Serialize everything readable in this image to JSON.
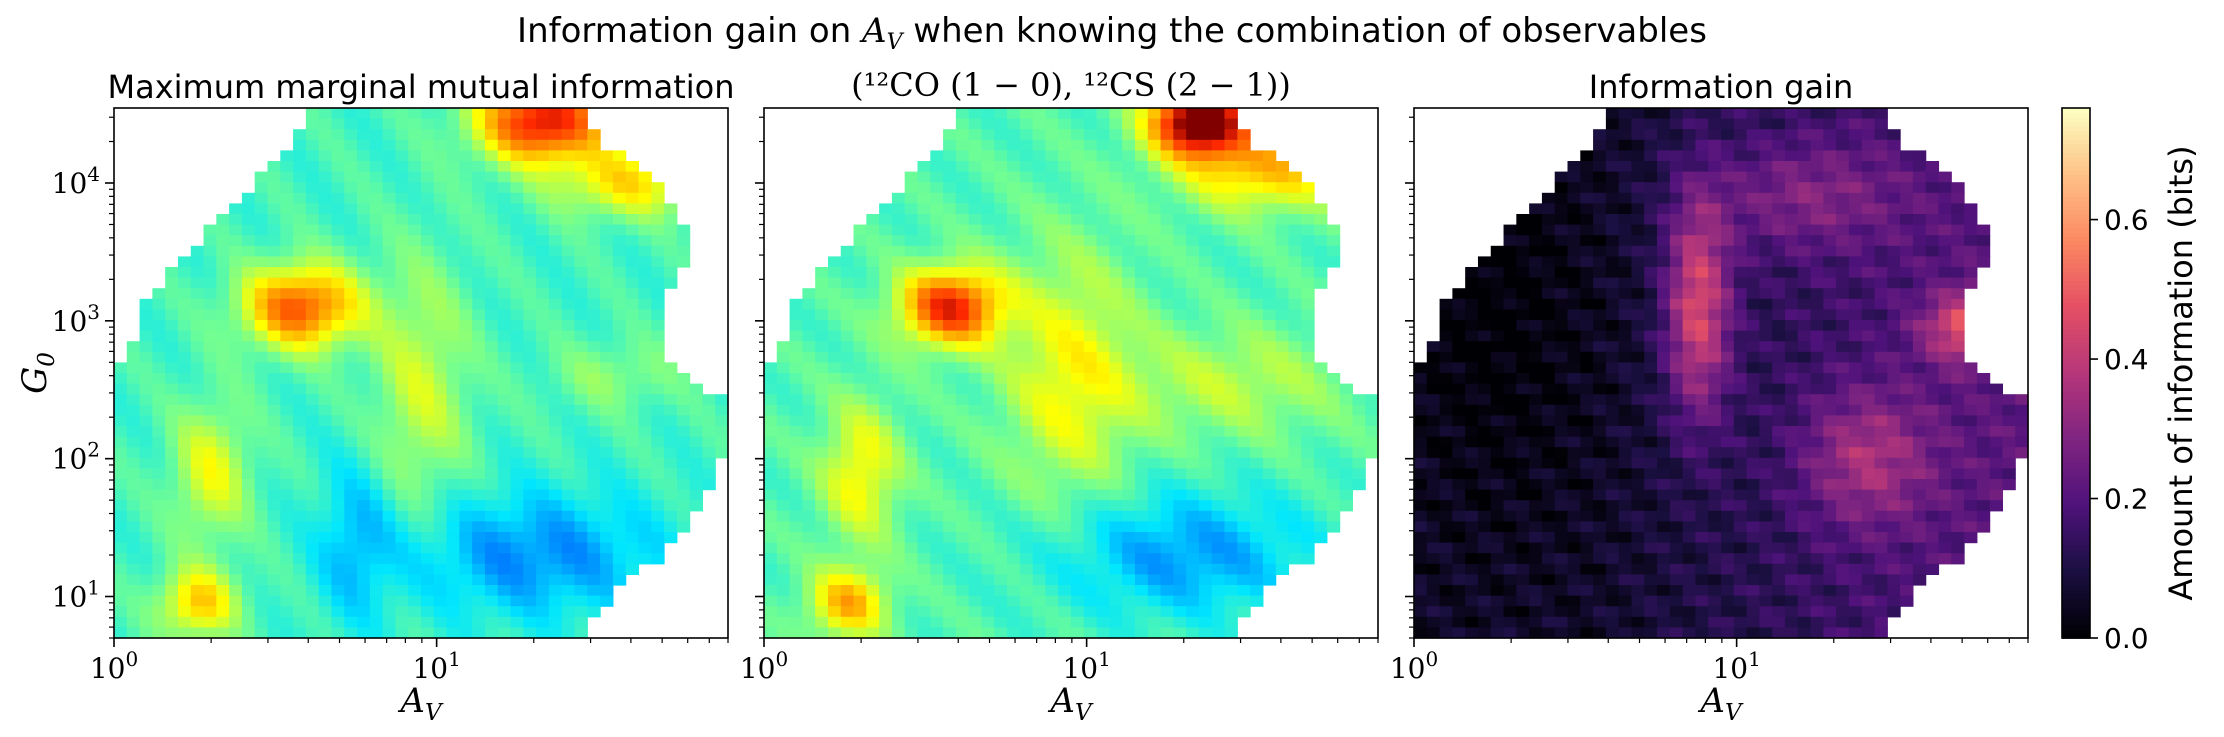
{
  "figure": {
    "suptitle_prefix": "Information gain on ",
    "suptitle_var": "A",
    "suptitle_sub": "V",
    "suptitle_suffix": " when knowing the combination of observables"
  },
  "chart_data": [
    {
      "type": "heatmap",
      "title": "Maximum marginal mutual information",
      "xlabel": "A_V",
      "ylabel": "G_0",
      "x_scale": "log",
      "y_scale": "log",
      "xlim": [
        1,
        80
      ],
      "ylim": [
        5,
        35000
      ],
      "x_ticks": [
        {
          "value": 1,
          "label": "10^0"
        },
        {
          "value": 10,
          "label": "10^1"
        }
      ],
      "y_ticks": [
        {
          "value": 10,
          "label": "10^1"
        },
        {
          "value": 100,
          "label": "10^2"
        },
        {
          "value": 1000,
          "label": "10^3"
        },
        {
          "value": 10000,
          "label": "10^4"
        }
      ],
      "colormap": "jet",
      "features": [
        {
          "A_V": 3.8,
          "G_0": 1200,
          "intensity": "high (yellow-orange)"
        },
        {
          "A_V": 22,
          "G_0": 28000,
          "intensity": "very high (red-orange)"
        },
        {
          "A_V": 1.8,
          "G_0": 8,
          "intensity": "medium-high (yellow-green)"
        },
        {
          "A_V": 30,
          "G_0": 20,
          "intensity": "low (blue)"
        }
      ]
    },
    {
      "type": "heatmap",
      "title": "(¹²CO (1 − 0), ¹²CS (2 − 1))",
      "xlabel": "A_V",
      "x_scale": "log",
      "y_scale": "log",
      "xlim": [
        1,
        80
      ],
      "ylim": [
        5,
        35000
      ],
      "x_ticks": [
        {
          "value": 1,
          "label": "10^0"
        },
        {
          "value": 10,
          "label": "10^1"
        }
      ],
      "colormap": "jet",
      "features": [
        {
          "A_V": 3.9,
          "G_0": 1200,
          "intensity": "high (orange)"
        },
        {
          "A_V": 22,
          "G_0": 25000,
          "intensity": "maximum (dark red)"
        },
        {
          "A_V": 1.8,
          "G_0": 8,
          "intensity": "medium-high (yellow-green)"
        }
      ]
    },
    {
      "type": "heatmap",
      "title": "Information gain",
      "xlabel": "A_V",
      "x_scale": "log",
      "y_scale": "log",
      "xlim": [
        1,
        80
      ],
      "ylim": [
        5,
        35000
      ],
      "x_ticks": [
        {
          "value": 1,
          "label": "10^0"
        },
        {
          "value": 10,
          "label": "10^1"
        }
      ],
      "colormap": "magma",
      "colorbar": {
        "label": "Amount of information (bits)",
        "range": [
          0,
          0.76
        ],
        "ticks": [
          {
            "value": 0.0,
            "label": "0.0"
          },
          {
            "value": 0.2,
            "label": "0.2"
          },
          {
            "value": 0.4,
            "label": "0.4"
          },
          {
            "value": 0.6,
            "label": "0.6"
          }
        ]
      },
      "features": [
        {
          "A_V": 55,
          "G_0": 1000,
          "value": 0.45
        },
        {
          "A_V": 7,
          "G_0": 1500,
          "value": 0.3
        },
        {
          "A_V": 2,
          "G_0": 100,
          "value": 0.02
        }
      ]
    }
  ],
  "colors": {
    "axis": "#000000",
    "missing": "#ffffff"
  }
}
